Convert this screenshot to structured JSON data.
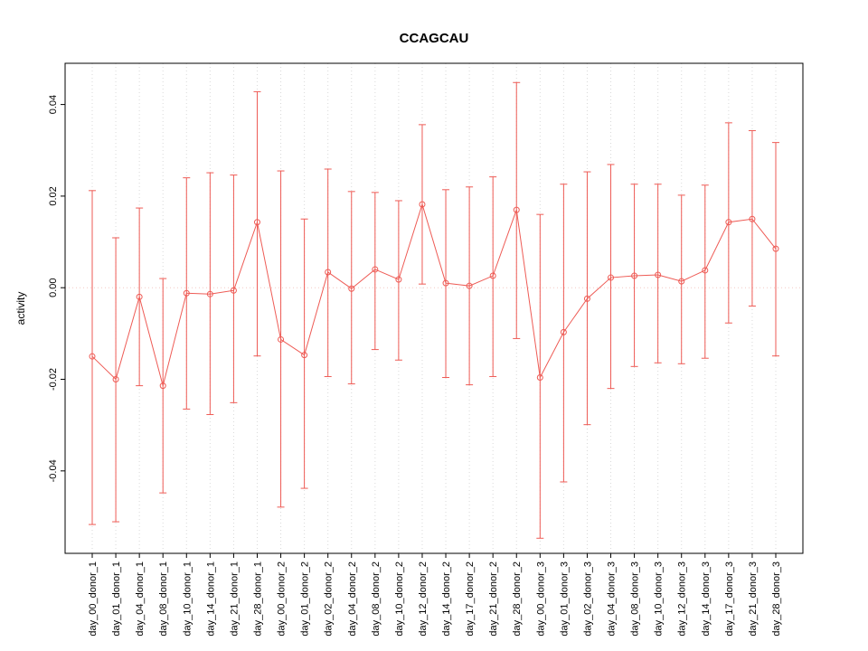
{
  "chart_data": {
    "type": "line",
    "title": "CCAGCAU",
    "xlabel": "",
    "ylabel": "activity",
    "ylim": [
      -0.058,
      0.049
    ],
    "yticks": [
      -0.04,
      -0.02,
      0.0,
      0.02,
      0.04
    ],
    "grid": true,
    "legend": "none",
    "series_color": "#ee5b55",
    "grid_color": "#d9d9d9",
    "zero_line_color": "#f4c7c3",
    "background_color": "#ffffff",
    "categories": [
      "day_00_donor_1",
      "day_01_donor_1",
      "day_04_donor_1",
      "day_08_donor_1",
      "day_10_donor_1",
      "day_14_donor_1",
      "day_21_donor_1",
      "day_28_donor_1",
      "day_00_donor_2",
      "day_01_donor_2",
      "day_02_donor_2",
      "day_04_donor_2",
      "day_08_donor_2",
      "day_10_donor_2",
      "day_12_donor_2",
      "day_14_donor_2",
      "day_17_donor_2",
      "day_21_donor_2",
      "day_28_donor_2",
      "day_00_donor_3",
      "day_01_donor_3",
      "day_02_donor_3",
      "day_04_donor_3",
      "day_08_donor_3",
      "day_10_donor_3",
      "day_12_donor_3",
      "day_14_donor_3",
      "day_17_donor_3",
      "day_21_donor_3",
      "day_28_donor_3"
    ],
    "series": [
      {
        "name": "activity",
        "values": [
          -0.015,
          -0.02,
          -0.002,
          -0.0214,
          -0.0012,
          -0.0014,
          -0.0006,
          0.0143,
          -0.0113,
          -0.0147,
          0.0034,
          -0.0002,
          0.004,
          0.0018,
          0.0182,
          0.001,
          0.0004,
          0.0026,
          0.017,
          -0.0196,
          -0.0097,
          -0.0024,
          0.0022,
          0.0026,
          0.0028,
          0.0014,
          0.0038,
          0.0143,
          0.015,
          0.0085
        ],
        "upper": [
          0.0212,
          0.0109,
          0.0174,
          0.002,
          0.024,
          0.0251,
          0.0246,
          0.0428,
          0.0255,
          0.015,
          0.0259,
          0.021,
          0.0208,
          0.019,
          0.0356,
          0.0214,
          0.022,
          0.0242,
          0.0448,
          0.016,
          0.0226,
          0.0253,
          0.0269,
          0.0226,
          0.0226,
          0.0202,
          0.0224,
          0.036,
          0.0343,
          0.0317
        ],
        "lower": [
          -0.0517,
          -0.0511,
          -0.0214,
          -0.0448,
          -0.0265,
          -0.0277,
          -0.0251,
          -0.0149,
          -0.0479,
          -0.0438,
          -0.0194,
          -0.021,
          -0.0135,
          -0.0158,
          0.0008,
          -0.0196,
          -0.0212,
          -0.0194,
          -0.0111,
          -0.0547,
          -0.0424,
          -0.0299,
          -0.022,
          -0.0172,
          -0.0164,
          -0.0166,
          -0.0154,
          -0.0077,
          -0.004,
          -0.0149
        ]
      }
    ]
  }
}
